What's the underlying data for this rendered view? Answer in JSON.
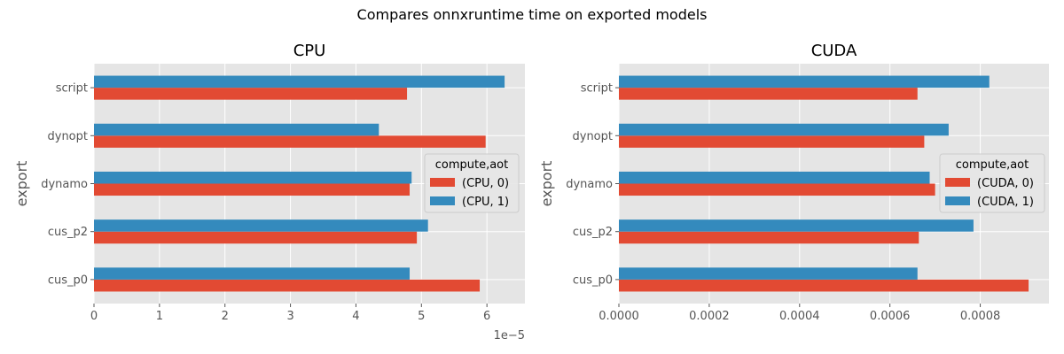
{
  "suptitle": "Compares onnxruntime time on exported models",
  "colors": {
    "aot0": "#E24A33",
    "aot1": "#348ABD",
    "panel_bg": "#E5E5E5",
    "grid": "#FFFFFF"
  },
  "chart_data": [
    {
      "type": "bar",
      "orientation": "horizontal",
      "title": "CPU",
      "xlabel": "",
      "ylabel": "export",
      "categories": [
        "cus_p0",
        "cus_p2",
        "dynamo",
        "dynopt",
        "script"
      ],
      "series": [
        {
          "name": "(CPU, 0)",
          "values": [
            5.89e-05,
            4.93e-05,
            4.82e-05,
            5.98e-05,
            4.78e-05
          ]
        },
        {
          "name": "(CPU, 1)",
          "values": [
            4.82e-05,
            5.1e-05,
            4.85e-05,
            4.35e-05,
            6.27e-05
          ]
        }
      ],
      "xlim": [
        0,
        6.58e-05
      ],
      "xticks": [
        0,
        1e-05,
        2e-05,
        3e-05,
        4e-05,
        5e-05,
        6e-05
      ],
      "xticklabels": [
        "0",
        "1",
        "2",
        "3",
        "4",
        "5",
        "6"
      ],
      "offset_label": "1e−5",
      "legend": {
        "title": "compute,aot",
        "position": "center-right"
      }
    },
    {
      "type": "bar",
      "orientation": "horizontal",
      "title": "CUDA",
      "xlabel": "",
      "ylabel": "export",
      "categories": [
        "cus_p0",
        "cus_p2",
        "dynamo",
        "dynopt",
        "script"
      ],
      "series": [
        {
          "name": "(CUDA, 0)",
          "values": [
            0.000907,
            0.000664,
            0.0007,
            0.000676,
            0.000661
          ]
        },
        {
          "name": "(CUDA, 1)",
          "values": [
            0.000661,
            0.000785,
            0.000688,
            0.00073,
            0.00082
          ]
        }
      ],
      "xlim": [
        0,
        0.000952
      ],
      "xticks": [
        0,
        0.0002,
        0.0004,
        0.0006,
        0.0008
      ],
      "xticklabels": [
        "0.0000",
        "0.0002",
        "0.0004",
        "0.0006",
        "0.0008"
      ],
      "legend": {
        "title": "compute,aot",
        "position": "center-right"
      }
    }
  ]
}
